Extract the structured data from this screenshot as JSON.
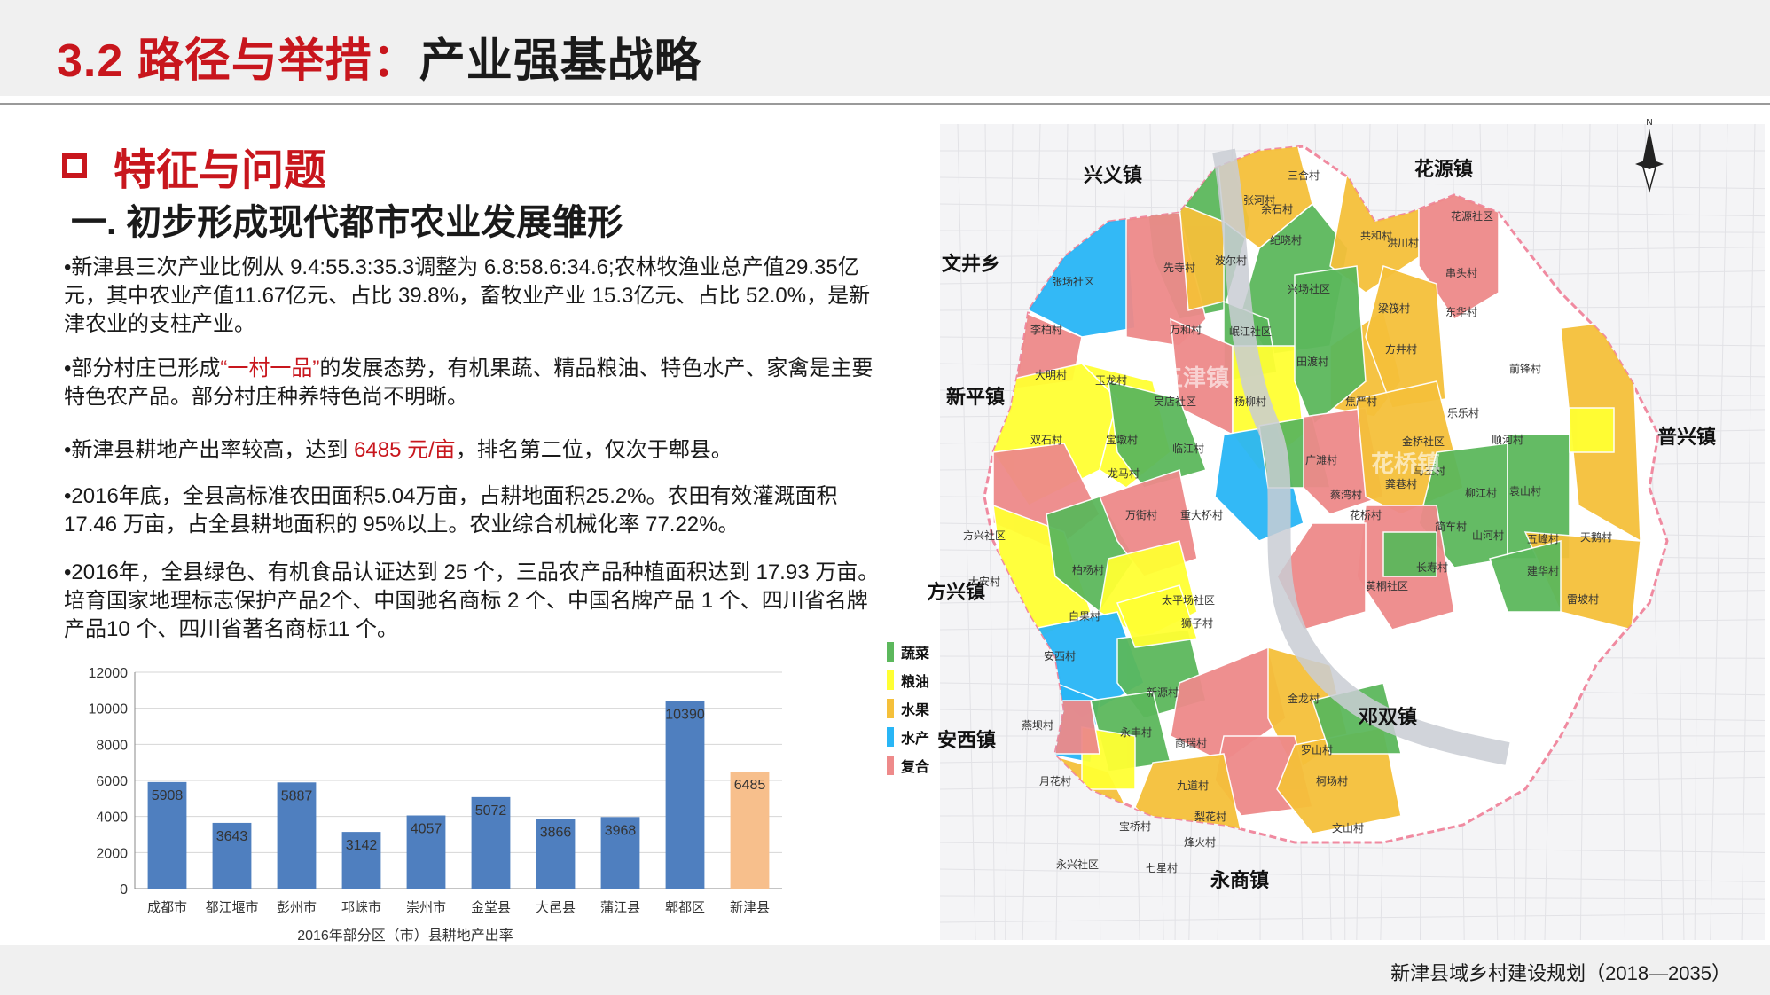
{
  "header": {
    "title_num": "3.2",
    "title_red": "路径与举措：",
    "title_black": "产业强基战略"
  },
  "section": {
    "title": "特征与问题",
    "subtitle": "一.  初步形成现代都市农业发展雏形"
  },
  "paragraphs": {
    "p1": "•新津县三次产业比例从 9.4:55.3:35.3调整为 6.8:58.6:34.6;农林牧渔业总产值29.35亿元，其中农业产值11.67亿元、占比 39.8%，畜牧业产业 15.3亿元、占比 52.0%，是新津农业的支柱产业。",
    "p2_a": "•部分村庄已形成",
    "p2_hl": "“一村一品”",
    "p2_b": "的发展态势，有机果蔬、精品粮油、特色水产、家禽是主要特色农产品。部分村庄种养特色尚不明晰。",
    "p3_a": "•新津县耕地产出率较高，达到 ",
    "p3_hl": "6485 元/亩",
    "p3_b": "，排名第二位，仅次于郫县。",
    "p4": "•2016年底，全县高标准农田面积5.04万亩，占耕地面积25.2%。农田有效灌溉面积 17.46 万亩，占全县耕地面积的 95%以上。农业综合机械化率 77.22%。",
    "p5": "•2016年，全县绿色、有机食品认证达到 25 个，三品农产品种植面积达到 17.93 万亩。培育国家地理标志保护产品2个、中国驰名商标 2 个、中国名牌产品 1 个、四川省名牌产品10 个、四川省著名商标11 个。"
  },
  "chart_data": {
    "type": "bar",
    "title": "2016年部分区（市）县耕地产出率",
    "categories": [
      "成都市",
      "都江堰市",
      "彭州市",
      "邛崃市",
      "崇州市",
      "金堂县",
      "大邑县",
      "蒲江县",
      "郫都区",
      "新津县"
    ],
    "values": [
      5908,
      3643,
      5887,
      3142,
      4057,
      5072,
      3866,
      3968,
      10390,
      6485
    ],
    "ylim": [
      0,
      12000
    ],
    "yticks": [
      0,
      2000,
      4000,
      6000,
      8000,
      10000,
      12000
    ],
    "grid": true,
    "colors": {
      "default": "#4f7fbf",
      "highlight": "#f7bf8c",
      "highlight_index": 9
    }
  },
  "map": {
    "towns": [
      "兴义镇",
      "花源镇",
      "文井乡",
      "新平镇",
      "普兴镇",
      "方兴镇",
      "安西镇",
      "邓双镇",
      "永商镇"
    ],
    "watermark_towns": [
      "五津镇",
      "花桥镇"
    ],
    "villages": [
      "三合村",
      "张河村",
      "余石村",
      "纪晓村",
      "共和村",
      "洪川村",
      "花源社区",
      "串头村",
      "先寺村",
      "波尔村",
      "兴场社区",
      "张场社区",
      "梁筏村",
      "东华村",
      "李柏村",
      "万和村",
      "岷江社区",
      "田渡村",
      "方井村",
      "前锋村",
      "大明村",
      "玉龙村",
      "吴店社区",
      "杨柳村",
      "焦严村",
      "乐乐村",
      "顺河村",
      "双石村",
      "宝墩村",
      "临江村",
      "广滩村",
      "金桥社区",
      "马王村",
      "柳江村",
      "袁山村",
      "龙马村",
      "龚巷村",
      "蔡湾村",
      "花桥村",
      "万街村",
      "重大桥村",
      "简车村",
      "山河村",
      "五峰村",
      "天鹅村",
      "方兴社区",
      "柏杨村",
      "长寿村",
      "建华村",
      "大安村",
      "太平场社区",
      "黄桐社区",
      "雷坡村",
      "白果村",
      "狮子村",
      "安西村",
      "新源村",
      "金龙村",
      "燕坝村",
      "永丰村",
      "商瑞村",
      "罗山村",
      "柯场村",
      "月花村",
      "九道村",
      "梨花村",
      "宝桥村",
      "文山村",
      "烽火村",
      "永兴社区",
      "七星村"
    ],
    "legend": [
      {
        "label": "蔬菜",
        "color": "#5cb85c"
      },
      {
        "label": "粮油",
        "color": "#ffff33"
      },
      {
        "label": "水果",
        "color": "#f5c03a"
      },
      {
        "label": "水产",
        "color": "#29b6f6"
      },
      {
        "label": "复合",
        "color": "#ee8a8a"
      }
    ],
    "north_label": "N"
  },
  "footer": {
    "text": "新津县域乡村建设规划（2018—2035）"
  }
}
